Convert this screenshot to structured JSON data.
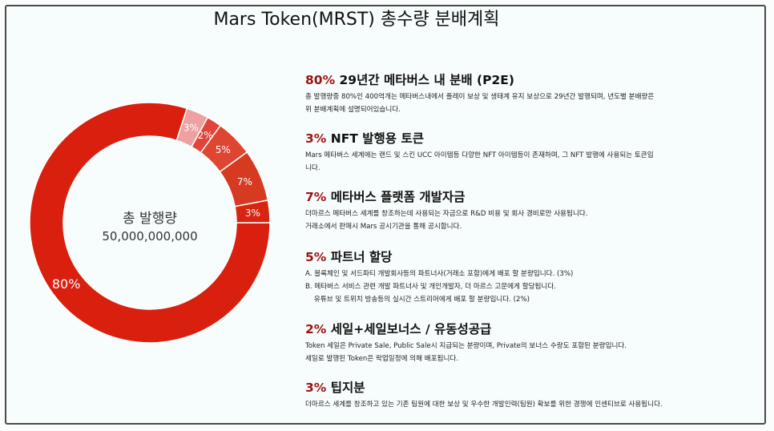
{
  "title": "Mars Token(MRST) 총수량 분배계획",
  "chart_data": {
    "type": "pie",
    "donut": true,
    "title": "Mars Token(MRST) 총수량 분배계획",
    "center_label": "총 발행량",
    "center_value": "50,000,000,000",
    "categories": [
      "메타버스 내 분배 (P2E)",
      "팁지분",
      "세일+세일보너스 / 유동성공급",
      "파트너 할당",
      "메타버스 플랫폼 개발자금",
      "NFT 발행용 토큰"
    ],
    "values": [
      80,
      3,
      2,
      5,
      7,
      3
    ],
    "labels": [
      "80%",
      "3%",
      "2%",
      "5%",
      "7%",
      "3%"
    ],
    "colors": [
      "#d9200f",
      "#eda1a1",
      "#e1443a",
      "#df4632",
      "#d63b22",
      "#d82413"
    ]
  },
  "sections": [
    {
      "pct": "80%",
      "title": "29년간 메타버스 내 분배 (P2E)",
      "lines": [
        "총 발행량중 80%인 400억개는 메타버스내에서 플레이 보상 및 생태계 유지 보상으로 29년간 발행되며,  년도별 분배량은",
        "위 분배계획에 설명되어있습니다."
      ]
    },
    {
      "pct": "3%",
      "title": "NFT 발행용 토큰",
      "lines": [
        "Mars 메타버스 세계에는 랜드 및 스킨 UCC 아이템등 다양한 NFT 아이템등이 존재하며, 그 NFT 발행에 사용되는 토큰입",
        "니다."
      ]
    },
    {
      "pct": "7%",
      "title": "메타버스 플랫폼 개발자금",
      "lines": [
        "더마르스 메타버스 세계를 창조하는데 사용되는 자금으로 R&D 비용 및 회사 경비로만 사용됩니다.",
        "거래소에서 판매시 Mars 공시기관을 통해 공시합니다."
      ]
    },
    {
      "pct": "5%",
      "title": "파트너 할당",
      "lines": [
        "A. 블록체인 및 서드파티 개발회사등의 파트너사(거래소 포함)에게 배포 할 분량입니다. (3%)",
        "B. 메타버스 서비스 관련 개발 파트너사 및 개인개발자, 더 마르스 고문에게 할당됩니다.",
        "    유튜브 및 트위치 방송등의 실시간 스트리머에게 배포 할 분량입니다. (2%)"
      ]
    },
    {
      "pct": "2%",
      "title": "세일+세일보너스 / 유동성공급",
      "lines": [
        "Token 세일은 Private Sale, Public Sale시 지급되는 분량이며, Private의 보너스 수량도 포함된 분량입니다.",
        "세일로 발행된 Token은 락업일정에 의해 배포됩니다."
      ]
    },
    {
      "pct": "3%",
      "title": "팁지분",
      "lines": [
        "더마르스 세계를 창조하고 있는 기존 팀원에 대한 보상 및 우수한 개발인력(팀원) 확보를 위한 경쟁에 인센티브로 사용됩니다."
      ]
    }
  ]
}
